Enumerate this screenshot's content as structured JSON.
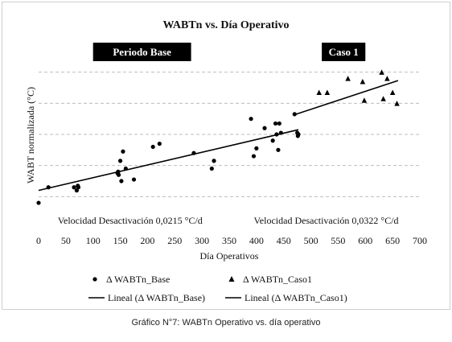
{
  "caption": "Gráfico N°7: WABTn Operativo vs. día operativo",
  "chart_data": {
    "type": "scatter",
    "title": "WABTn vs. Día Operativo",
    "xlabel": "Día Operativos",
    "ylabel": "WABT normalizada (°C)",
    "xlim": [
      0,
      700
    ],
    "x_ticks": [
      0,
      50,
      100,
      150,
      200,
      250,
      300,
      350,
      400,
      450,
      500,
      550,
      600,
      650,
      700
    ],
    "ylim": [
      0,
      6
    ],
    "y_gridlines": [
      1,
      2,
      3,
      4,
      5
    ],
    "grid": "horizontal-dashed",
    "legend_position": "bottom",
    "region_labels": [
      {
        "label": "Periodo Base",
        "x_start": 100,
        "x_end": 280
      },
      {
        "label": "Caso 1",
        "x_start": 520,
        "x_end": 600
      }
    ],
    "annotations": [
      {
        "text": "Velocidad  Desactivación  0,0215 °C/d",
        "x": 35
      },
      {
        "text": "Velocidad  Desactivación  0,0322 °C/d",
        "x": 395
      }
    ],
    "series": [
      {
        "name": "Δ WABTn_Base",
        "marker": "circle",
        "x": [
          0,
          18,
          65,
          70,
          72,
          73,
          145,
          146,
          147,
          150,
          152,
          155,
          160,
          175,
          210,
          222,
          285,
          318,
          322,
          390,
          395,
          400,
          415,
          430,
          435,
          437,
          440,
          442,
          445,
          470,
          475,
          476,
          477
        ],
        "y": [
          0.8,
          1.3,
          1.3,
          1.2,
          1.35,
          1.3,
          1.75,
          1.8,
          1.7,
          2.15,
          1.5,
          2.45,
          1.9,
          1.55,
          2.6,
          2.7,
          2.4,
          1.9,
          2.15,
          3.5,
          2.3,
          2.55,
          3.2,
          2.8,
          3.35,
          3.0,
          2.5,
          3.35,
          3.05,
          3.65,
          3.05,
          2.95,
          3.0
        ]
      },
      {
        "name": "Δ WABTn_Caso1",
        "marker": "triangle",
        "x": [
          515,
          530,
          568,
          595,
          598,
          630,
          633,
          640,
          650,
          658
        ],
        "y": [
          4.35,
          4.35,
          4.8,
          4.7,
          4.1,
          5.0,
          4.15,
          4.8,
          4.35,
          4.0
        ]
      }
    ],
    "trendlines": [
      {
        "name": "Lineal (Δ WABTn_Base)",
        "x": [
          0,
          477
        ],
        "y": [
          1.2,
          3.15
        ]
      },
      {
        "name": "Lineal (Δ WABTn_Caso1)",
        "x": [
          473,
          660
        ],
        "y": [
          3.65,
          4.73
        ]
      }
    ]
  }
}
